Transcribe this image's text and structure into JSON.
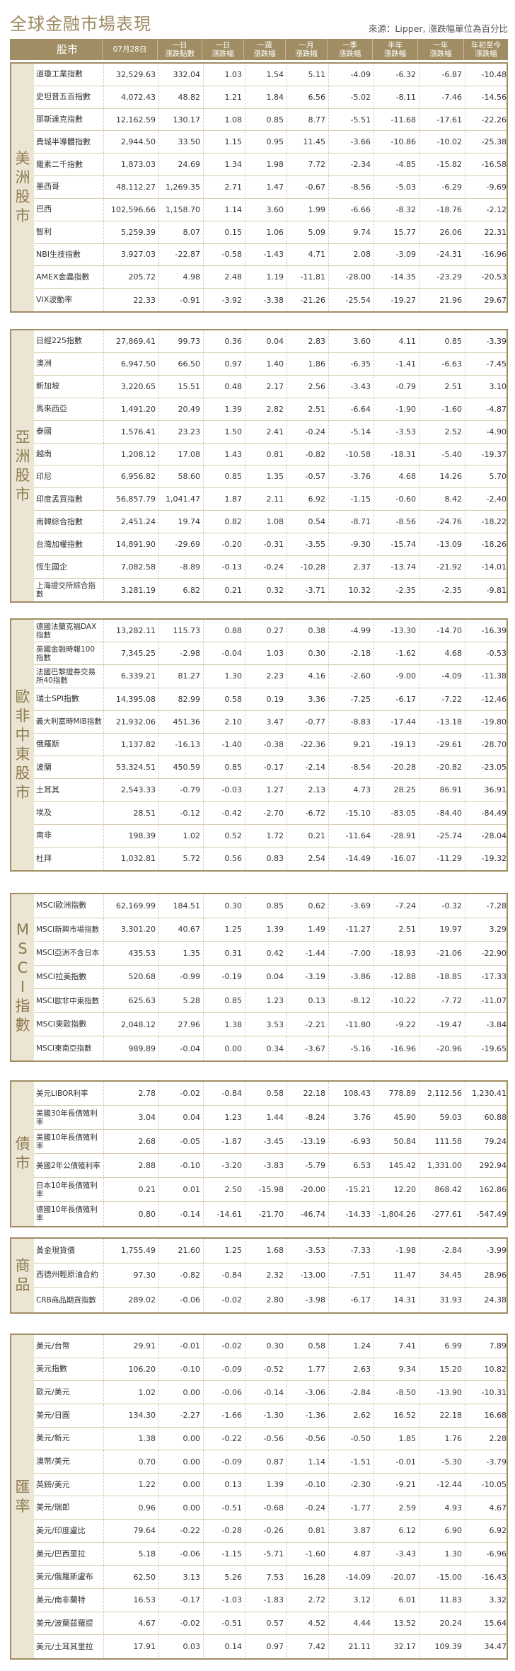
{
  "title": "全球金融市場表現",
  "source": "來源：Lipper, 漲跌幅單位為百分比",
  "headers": {
    "name": "股市",
    "price": "07月28日",
    "d1_chg": "一日\n漲跌點數",
    "d1_pct": "一日\n漲跌幅",
    "w1": "一週\n漲跌幅",
    "m1": "一月\n漲跌幅",
    "q1": "一季\n漲跌幅",
    "h1": "半年\n漲跌幅",
    "y1": "一年\n漲跌幅",
    "ytd": "年初至今\n漲跌幅"
  },
  "sections": [
    {
      "category": "美洲股市",
      "rows": [
        [
          "道瓊工業指數",
          "32,529.63",
          "332.04",
          "1.03",
          "1.54",
          "5.11",
          "-4.09",
          "-6.32",
          "-6.87",
          "-10.48"
        ],
        [
          "史坦普五百指數",
          "4,072.43",
          "48.82",
          "1.21",
          "1.84",
          "6.56",
          "-5.02",
          "-8.11",
          "-7.46",
          "-14.56"
        ],
        [
          "那斯達克指數",
          "12,162.59",
          "130.17",
          "1.08",
          "0.85",
          "8.77",
          "-5.51",
          "-11.68",
          "-17.61",
          "-22.26"
        ],
        [
          "費城半導體指數",
          "2,944.50",
          "33.50",
          "1.15",
          "0.95",
          "11.45",
          "-3.66",
          "-10.86",
          "-10.02",
          "-25.38"
        ],
        [
          "羅素二千指數",
          "1,873.03",
          "24.69",
          "1.34",
          "1.98",
          "7.72",
          "-2.34",
          "-4.85",
          "-15.82",
          "-16.58"
        ],
        [
          "墨西哥",
          "48,112.27",
          "1,269.35",
          "2.71",
          "1.47",
          "-0.67",
          "-8.56",
          "-5.03",
          "-6.29",
          "-9.69"
        ],
        [
          "巴西",
          "102,596.66",
          "1,158.70",
          "1.14",
          "3.60",
          "1.99",
          "-6.66",
          "-8.32",
          "-18.76",
          "-2.12"
        ],
        [
          "智利",
          "5,259.39",
          "8.07",
          "0.15",
          "1.06",
          "5.09",
          "9.74",
          "15.77",
          "26.06",
          "22.31"
        ],
        [
          "NBI生技指數",
          "3,927.03",
          "-22.87",
          "-0.58",
          "-1.43",
          "4.71",
          "2.08",
          "-3.09",
          "-24.31",
          "-16.96"
        ],
        [
          "AMEX金蟲指數",
          "205.72",
          "4.98",
          "2.48",
          "1.19",
          "-11.81",
          "-28.00",
          "-14.35",
          "-23.29",
          "-20.53"
        ],
        [
          "VIX波動率",
          "22.33",
          "-0.91",
          "-3.92",
          "-3.38",
          "-21.26",
          "-25.54",
          "-19.27",
          "21.96",
          "29.67"
        ]
      ]
    },
    {
      "category": "亞洲股市",
      "rows": [
        [
          "日經225指數",
          "27,869.41",
          "99.73",
          "0.36",
          "0.04",
          "2.83",
          "3.60",
          "4.11",
          "0.85",
          "-3.39"
        ],
        [
          "澳洲",
          "6,947.50",
          "66.50",
          "0.97",
          "1.40",
          "1.86",
          "-6.35",
          "-1.41",
          "-6.63",
          "-7.45"
        ],
        [
          "新加坡",
          "3,220.65",
          "15.51",
          "0.48",
          "2.17",
          "2.56",
          "-3.43",
          "-0.79",
          "2.51",
          "3.10"
        ],
        [
          "馬來西亞",
          "1,491.20",
          "20.49",
          "1.39",
          "2.82",
          "2.51",
          "-6.64",
          "-1.90",
          "-1.60",
          "-4.87"
        ],
        [
          "泰國",
          "1,576.41",
          "23.23",
          "1.50",
          "2.41",
          "-0.24",
          "-5.14",
          "-3.53",
          "2.52",
          "-4.90"
        ],
        [
          "越南",
          "1,208.12",
          "17.08",
          "1.43",
          "0.81",
          "-0.82",
          "-10.58",
          "-18.31",
          "-5.40",
          "-19.37"
        ],
        [
          "印尼",
          "6,956.82",
          "58.60",
          "0.85",
          "1.35",
          "-0.57",
          "-3.76",
          "4.68",
          "14.26",
          "5.70"
        ],
        [
          "印度孟買指數",
          "56,857.79",
          "1,041.47",
          "1.87",
          "2.11",
          "6.92",
          "-1.15",
          "-0.60",
          "8.42",
          "-2.40"
        ],
        [
          "南韓綜合指數",
          "2,451.24",
          "19.74",
          "0.82",
          "1.08",
          "0.54",
          "-8.71",
          "-8.56",
          "-24.76",
          "-18.22"
        ],
        [
          "台灣加權指數",
          "14,891.90",
          "-29.69",
          "-0.20",
          "-0.31",
          "-3.55",
          "-9.30",
          "-15.74",
          "-13.09",
          "-18.26"
        ],
        [
          "恆生國企",
          "7,082.58",
          "-8.89",
          "-0.13",
          "-0.24",
          "-10.28",
          "2.37",
          "-13.74",
          "-21.92",
          "-14.01"
        ],
        [
          "上海證交所綜合指數",
          "3,281.19",
          "6.82",
          "0.21",
          "0.32",
          "-3.71",
          "10.32",
          "-2.35",
          "-2.35",
          "-9.81"
        ]
      ]
    },
    {
      "category": "歐非中東股市",
      "rows": [
        [
          "德國法蘭克福DAX指數",
          "13,282.11",
          "115.73",
          "0.88",
          "0.27",
          "0.38",
          "-4.99",
          "-13.30",
          "-14.70",
          "-16.39"
        ],
        [
          "英國金融時報100指數",
          "7,345.25",
          "-2.98",
          "-0.04",
          "1.03",
          "0.30",
          "-2.18",
          "-1.62",
          "4.68",
          "-0.53"
        ],
        [
          "法國巴黎證券交易所40指數",
          "6,339.21",
          "81.27",
          "1.30",
          "2.23",
          "4.16",
          "-2.60",
          "-9.00",
          "-4.09",
          "-11.38"
        ],
        [
          "瑞士SPI指數",
          "14,395.08",
          "82.99",
          "0.58",
          "0.19",
          "3.36",
          "-7.25",
          "-6.17",
          "-7.22",
          "-12.46"
        ],
        [
          "義大利富時MIB指數",
          "21,932.06",
          "451.36",
          "2.10",
          "3.47",
          "-0.77",
          "-8.83",
          "-17.44",
          "-13.18",
          "-19.80"
        ],
        [
          "俄羅斯",
          "1,137.82",
          "-16.13",
          "-1.40",
          "-0.38",
          "-22.36",
          "9.21",
          "-19.13",
          "-29.61",
          "-28.70"
        ],
        [
          "波蘭",
          "53,324.51",
          "450.59",
          "0.85",
          "-0.17",
          "-2.14",
          "-8.54",
          "-20.28",
          "-20.82",
          "-23.05"
        ],
        [
          "土耳其",
          "2,543.33",
          "-0.79",
          "-0.03",
          "1.27",
          "2.13",
          "4.73",
          "28.25",
          "86.91",
          "36.91"
        ],
        [
          "埃及",
          "28.51",
          "-0.12",
          "-0.42",
          "-2.70",
          "-6.72",
          "-15.10",
          "-83.05",
          "-84.40",
          "-84.49"
        ],
        [
          "南非",
          "198.39",
          "1.02",
          "0.52",
          "1.72",
          "0.21",
          "-11.64",
          "-28.91",
          "-25.74",
          "-28.04"
        ],
        [
          "杜拜",
          "1,032.81",
          "5.72",
          "0.56",
          "0.83",
          "2.54",
          "-14.49",
          "-16.07",
          "-11.29",
          "-19.32"
        ]
      ]
    },
    {
      "category": "MSCI指數",
      "rows": [
        [
          "MSCI歐洲指數",
          "62,169.99",
          "184.51",
          "0.30",
          "0.85",
          "0.62",
          "-3.69",
          "-7.24",
          "-0.32",
          "-7.28"
        ],
        [
          "MSCI新興市場指數",
          "3,301.20",
          "40.67",
          "1.25",
          "1.39",
          "1.49",
          "-11.27",
          "2.51",
          "19.97",
          "3.29"
        ],
        [
          "MSCI亞洲不含日本",
          "435.53",
          "1.35",
          "0.31",
          "0.42",
          "-1.44",
          "-7.00",
          "-18.93",
          "-21.06",
          "-22.90"
        ],
        [
          "MSCI拉美指數",
          "520.68",
          "-0.99",
          "-0.19",
          "0.04",
          "-3.19",
          "-3.86",
          "-12.88",
          "-18.85",
          "-17.33"
        ],
        [
          "MSCI歐非中東指數",
          "625.63",
          "5.28",
          "0.85",
          "1.23",
          "0.13",
          "-8.12",
          "-10.22",
          "-7.72",
          "-11.07"
        ],
        [
          "MSCI東歐指數",
          "2,048.12",
          "27.96",
          "1.38",
          "3.53",
          "-2.21",
          "-11.80",
          "-9.22",
          "-19.47",
          "-3.84"
        ],
        [
          "MSCI東南亞指數",
          "989.89",
          "-0.04",
          "0.00",
          "0.34",
          "-3.67",
          "-5.16",
          "-16.96",
          "-20.96",
          "-19.65"
        ]
      ]
    },
    {
      "category": "債市",
      "rows": [
        [
          "美元LIBOR利率",
          "2.78",
          "-0.02",
          "-0.84",
          "0.58",
          "22.18",
          "108.43",
          "778.89",
          "2,112.56",
          "1,230.41"
        ],
        [
          "美國30年長債殖利率",
          "3.04",
          "0.04",
          "1.23",
          "1.44",
          "-8.24",
          "3.76",
          "45.90",
          "59.03",
          "60.88"
        ],
        [
          "美國10年長債殖利率",
          "2.68",
          "-0.05",
          "-1.87",
          "-3.45",
          "-13.19",
          "-6.93",
          "50.84",
          "111.58",
          "79.24"
        ],
        [
          "美國2年公債殖利率",
          "2.88",
          "-0.10",
          "-3.20",
          "-3.83",
          "-5.79",
          "6.53",
          "145.42",
          "1,331.00",
          "292.94"
        ],
        [
          "日本10年長債殖利率",
          "0.21",
          "0.01",
          "2.50",
          "-15.98",
          "-20.00",
          "-15.21",
          "12.20",
          "868.42",
          "162.86"
        ],
        [
          "德國10年長債殖利率",
          "0.80",
          "-0.14",
          "-14.61",
          "-21.70",
          "-46.74",
          "-14.33",
          "-1,804.26",
          "-277.61",
          "-547.49"
        ]
      ]
    },
    {
      "category": "商品",
      "rows": [
        [
          "黃金現貨價",
          "1,755.49",
          "21.60",
          "1.25",
          "1.68",
          "-3.53",
          "-7.33",
          "-1.98",
          "-2.84",
          "-3.99"
        ],
        [
          "西德州輕原油合約",
          "97.30",
          "-0.82",
          "-0.84",
          "2.32",
          "-13.00",
          "-7.51",
          "11.47",
          "34.45",
          "28.96"
        ],
        [
          "CRB商品期貨指數",
          "289.02",
          "-0.06",
          "-0.02",
          "2.80",
          "-3.98",
          "-6.17",
          "14.31",
          "31.93",
          "24.38"
        ]
      ]
    },
    {
      "category": "匯率",
      "rows": [
        [
          "美元/台幣",
          "29.91",
          "-0.01",
          "-0.02",
          "0.30",
          "0.58",
          "1.24",
          "7.41",
          "6.99",
          "7.89"
        ],
        [
          "美元指數",
          "106.20",
          "-0.10",
          "-0.09",
          "-0.52",
          "1.77",
          "2.63",
          "9.34",
          "15.20",
          "10.82"
        ],
        [
          "歐元/美元",
          "1.02",
          "0.00",
          "-0.06",
          "-0.14",
          "-3.06",
          "-2.84",
          "-8.50",
          "-13.90",
          "-10.31"
        ],
        [
          "美元/日圓",
          "134.30",
          "-2.27",
          "-1.66",
          "-1.30",
          "-1.36",
          "2.62",
          "16.52",
          "22.18",
          "16.68"
        ],
        [
          "美元/新元",
          "1.38",
          "0.00",
          "-0.22",
          "-0.56",
          "-0.56",
          "-0.50",
          "1.85",
          "1.76",
          "2.28"
        ],
        [
          "澳幣/美元",
          "0.70",
          "0.00",
          "-0.09",
          "0.87",
          "1.14",
          "-1.51",
          "-0.01",
          "-5.30",
          "-3.79"
        ],
        [
          "英鎊/美元",
          "1.22",
          "0.00",
          "0.13",
          "1.39",
          "-0.10",
          "-2.30",
          "-9.21",
          "-12.44",
          "-10.05"
        ],
        [
          "美元/瑞郎",
          "0.96",
          "0.00",
          "-0.51",
          "-0.68",
          "-0.24",
          "-1.77",
          "2.59",
          "4.93",
          "4.67"
        ],
        [
          "美元/印度盧比",
          "79.64",
          "-0.22",
          "-0.28",
          "-0.26",
          "0.81",
          "3.87",
          "6.12",
          "6.90",
          "6.92"
        ],
        [
          "美元/巴西里拉",
          "5.18",
          "-0.06",
          "-1.15",
          "-5.71",
          "-1.60",
          "4.87",
          "-3.43",
          "1.30",
          "-6.96"
        ],
        [
          "美元/俄羅斯盧布",
          "62.50",
          "3.13",
          "5.26",
          "7.53",
          "16.28",
          "-14.09",
          "-20.07",
          "-15.00",
          "-16.43"
        ],
        [
          "美元/南非蘭特",
          "16.53",
          "-0.17",
          "-1.03",
          "-1.83",
          "2.72",
          "3.12",
          "6.01",
          "11.83",
          "3.32"
        ],
        [
          "美元/波蘭茲羅提",
          "4.67",
          "-0.02",
          "-0.51",
          "0.57",
          "4.52",
          "4.44",
          "13.52",
          "20.24",
          "15.64"
        ],
        [
          "美元/土耳其里拉",
          "17.91",
          "0.03",
          "0.14",
          "0.97",
          "7.42",
          "21.11",
          "32.17",
          "109.39",
          "34.47"
        ]
      ]
    }
  ]
}
